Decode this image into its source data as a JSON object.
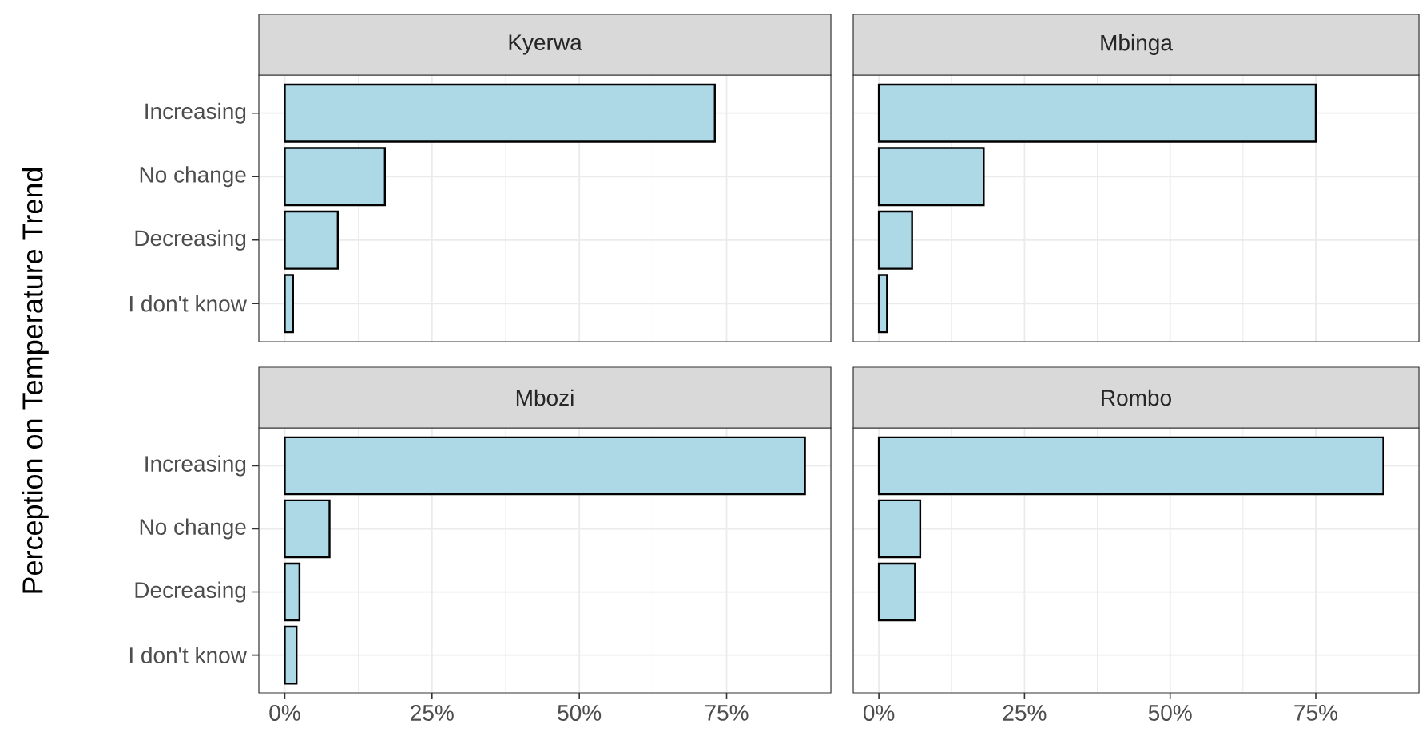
{
  "chart_data": [
    {
      "type": "bar",
      "orientation": "horizontal",
      "title": "Kyerwa",
      "ylabel": "Perception on Temperature Trend",
      "categories": [
        "Increasing",
        "No change",
        "Decreasing",
        "I don't know"
      ],
      "values": [
        73,
        17,
        9,
        1.4
      ],
      "color": "#add8e6",
      "xlim": [
        -4.4,
        92.7
      ],
      "xticks": [
        {
          "value": 0,
          "label": null
        },
        {
          "value": 25,
          "label": null
        },
        {
          "value": 50,
          "label": null
        },
        {
          "value": 75,
          "label": null
        }
      ],
      "grid": true,
      "tick_labels": "y"
    },
    {
      "type": "bar",
      "orientation": "horizontal",
      "title": "Mbinga",
      "categories": [
        null,
        null,
        null,
        null
      ],
      "values": [
        75,
        18,
        5.7,
        1.4
      ],
      "color": "#add8e6",
      "xlim": [
        -4.4,
        92.7
      ],
      "xticks": [
        {
          "value": 0,
          "label": null
        },
        {
          "value": 25,
          "label": null
        },
        {
          "value": 50,
          "label": null
        },
        {
          "value": 75,
          "label": null
        }
      ],
      "grid": true,
      "tick_labels": false
    },
    {
      "type": "bar",
      "orientation": "horizontal",
      "title": "Mbozi",
      "categories": [
        "Increasing",
        "No change",
        "Decreasing",
        "I don't know"
      ],
      "values": [
        88.3,
        7.6,
        2.5,
        2
      ],
      "color": "#add8e6",
      "xlim": [
        -4.4,
        92.7
      ],
      "xticks": [
        {
          "value": 0,
          "label": "0%"
        },
        {
          "value": 25,
          "label": "25%"
        },
        {
          "value": 50,
          "label": "50%"
        },
        {
          "value": 75,
          "label": "75%"
        }
      ],
      "grid": true
    },
    {
      "type": "bar",
      "orientation": "horizontal",
      "title": "Rombo",
      "categories": [
        null,
        null,
        null,
        null
      ],
      "values": [
        86.6,
        7.1,
        6.2,
        null
      ],
      "color": "#add8e6",
      "xlim": [
        -4.4,
        92.7
      ],
      "xticks": [
        {
          "value": 0,
          "label": "0%"
        },
        {
          "value": 25,
          "label": "25%"
        },
        {
          "value": 50,
          "label": "50%"
        },
        {
          "value": 75,
          "label": "75%"
        }
      ],
      "grid": true,
      "tick_labels": "x"
    }
  ]
}
